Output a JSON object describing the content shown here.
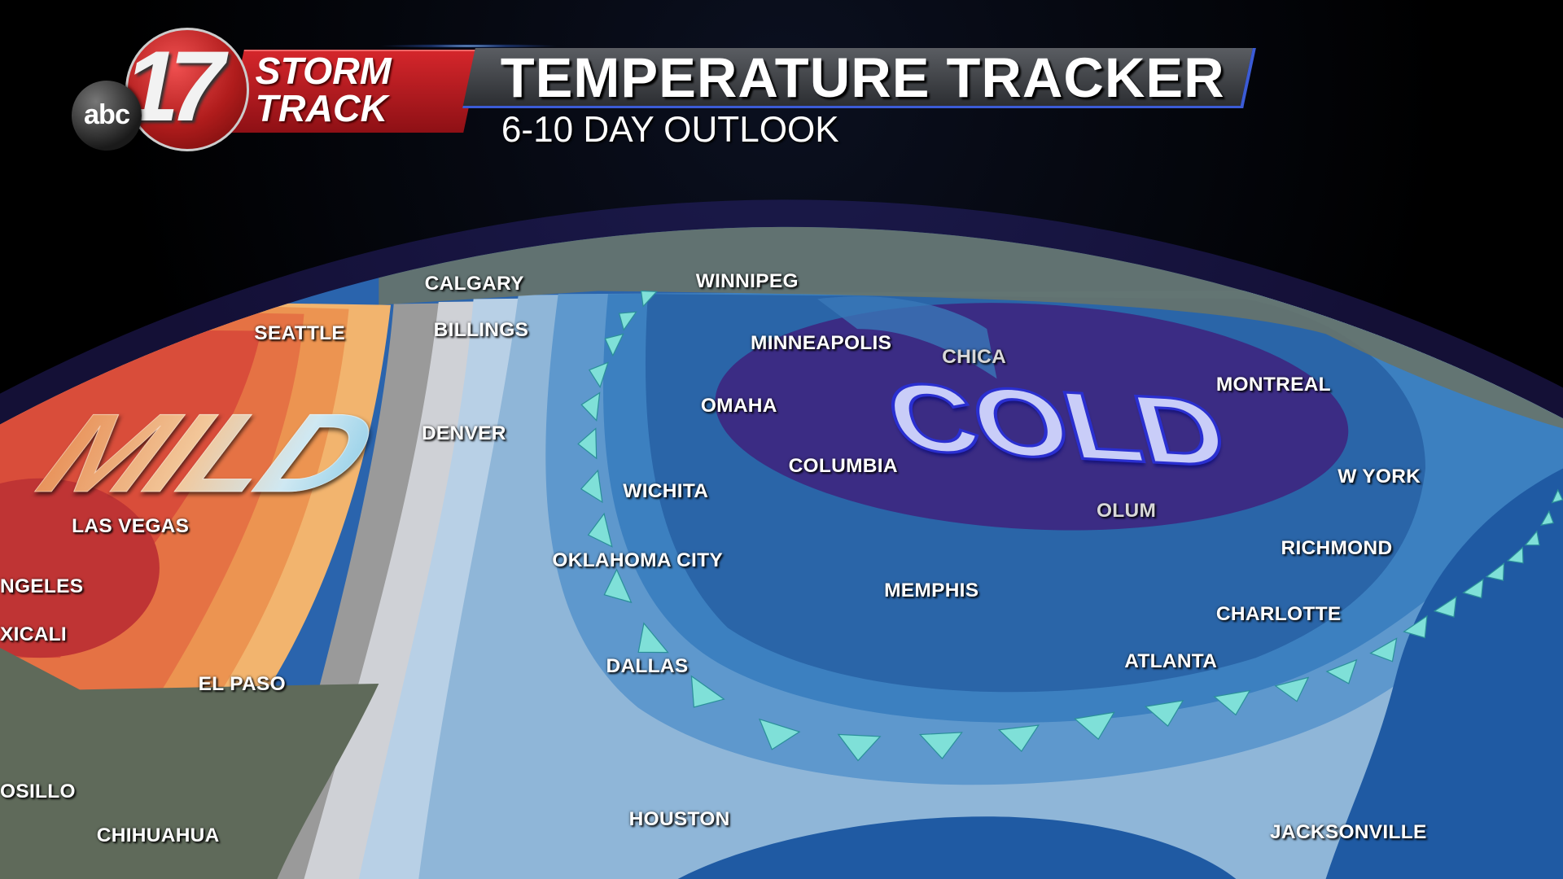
{
  "branding": {
    "network": "abc",
    "channel_number": "17",
    "brand_line1": "STORM",
    "brand_line2": "TRACK",
    "accent_color": "#c8202a",
    "bar_accent_color": "#3b5bd6"
  },
  "header": {
    "title": "TEMPERATURE TRACKER",
    "subtitle": "6-10 DAY OUTLOOK"
  },
  "map": {
    "region_labels": {
      "warm": "MILD",
      "cold": "COLD"
    },
    "outlook_colors": {
      "much_above": "#c23535",
      "above": "#e57244",
      "slightly_above": "#f2b46e",
      "near_normal": "#9a9a9a",
      "slightly_below": "#b8d0e6",
      "below": "#6fa3d3",
      "much_below": "#2a6aae",
      "far_below": "#3f2f86"
    },
    "front": "cold-front",
    "cities": [
      {
        "name": "CALGARY"
      },
      {
        "name": "WINNIPEG"
      },
      {
        "name": "SEATTLE"
      },
      {
        "name": "BILLINGS"
      },
      {
        "name": "MINNEAPOLIS"
      },
      {
        "name": "MONTREAL"
      },
      {
        "name": "OMAHA"
      },
      {
        "name": "DENVER"
      },
      {
        "name": "CHICA"
      },
      {
        "name": "COLUMBIA"
      },
      {
        "name": "OLUM"
      },
      {
        "name": "W YORK"
      },
      {
        "name": "WICHITA"
      },
      {
        "name": "LAS VEGAS"
      },
      {
        "name": "RICHMOND"
      },
      {
        "name": "OKLAHOMA CITY"
      },
      {
        "name": "MEMPHIS"
      },
      {
        "name": "NGELES"
      },
      {
        "name": "CHARLOTTE"
      },
      {
        "name": "XICALI"
      },
      {
        "name": "ATLANTA"
      },
      {
        "name": "DALLAS"
      },
      {
        "name": "EL PASO"
      },
      {
        "name": "OSILLO"
      },
      {
        "name": "HOUSTON"
      },
      {
        "name": "CHIHUAHUA"
      },
      {
        "name": "JACKSONVILLE"
      }
    ]
  }
}
